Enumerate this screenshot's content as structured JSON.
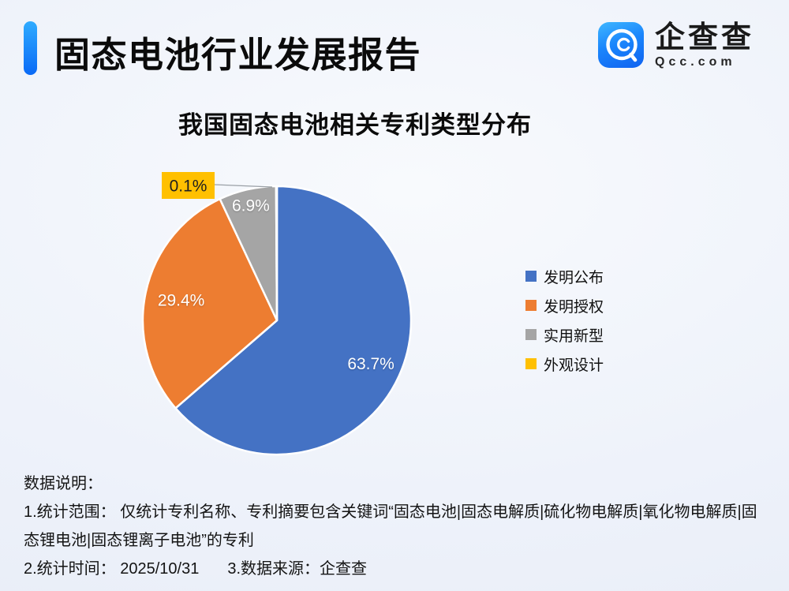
{
  "header": {
    "title": "固态电池行业发展报告",
    "accent_bar_color_top": "#2fabff",
    "accent_bar_color_bottom": "#0a6af6",
    "logo": {
      "icon": "qcc-magnifier-icon",
      "name": "企查查",
      "domain": "Qcc.com",
      "icon_color_top": "#3fb7ff",
      "icon_color_bottom": "#0f62f0"
    }
  },
  "chart_title": "我国固态电池相关专利类型分布",
  "chart_data": {
    "type": "pie",
    "title": "我国固态电池相关专利类型分布",
    "categories": [
      "发明公布",
      "发明授权",
      "实用新型",
      "外观设计"
    ],
    "values": [
      63.7,
      29.4,
      6.9,
      0.1
    ],
    "unit": "%",
    "colors": [
      "#4472C4",
      "#ED7D31",
      "#A5A5A5",
      "#FFC000"
    ],
    "start_angle": "12-o-clock, clockwise",
    "labels": [
      "63.7%",
      "29.4%",
      "6.9%",
      "0.1%"
    ],
    "label_style": "percent inside slice, white; smallest slice uses gold callout box with leader line",
    "legend_position": "right",
    "callout": {
      "text": "0.1%",
      "box_color": "#FFC000",
      "text_color": "#1f1f1f",
      "leader_line_color": "#9aa0a6"
    }
  },
  "footnotes": {
    "heading": "数据说明：",
    "scope_line1": "1.统计范围： 仅统计专利名称、专利摘要包含关键词“固态电池|固态电解质|硫化物电解质|氧化物电解质|固",
    "scope_line2": "态锂电池|固态锂离子电池”的专利",
    "time_label": "2.统计时间： 2025/10/31",
    "source_label": "3.数据来源：企查查"
  }
}
